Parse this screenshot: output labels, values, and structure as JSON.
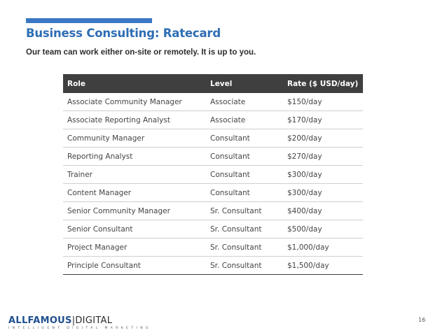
{
  "slide": {
    "title": "Business Consulting: Ratecard",
    "subtitle": "Our team can work either on-site or remotely. It is up to you.",
    "page_number": "16"
  },
  "table": {
    "headers": [
      "Role",
      "Level",
      "Rate ($ USD/day)"
    ],
    "rows": [
      [
        "Associate Community Manager",
        "Associate",
        "$150/day"
      ],
      [
        "Associate Reporting Analyst",
        "Associate",
        "$170/day"
      ],
      [
        "Community Manager",
        "Consultant",
        "$200/day"
      ],
      [
        "Reporting Analyst",
        "Consultant",
        "$270/day"
      ],
      [
        "Trainer",
        "Consultant",
        "$300/day"
      ],
      [
        "Content Manager",
        "Consultant",
        "$300/day"
      ],
      [
        "Senior Community Manager",
        "Sr. Consultant",
        "$400/day"
      ],
      [
        "Senior Consultant",
        "Sr. Consultant",
        "$500/day"
      ],
      [
        "Project Manager",
        "Sr. Consultant",
        "$1,000/day"
      ],
      [
        "Principle Consultant",
        "Sr. Consultant",
        "$1,500/day"
      ]
    ]
  },
  "logo": {
    "brand_part1": "ALLFAMOUS",
    "separator": "|",
    "brand_part2": "DIGITAL",
    "tagline": "INTELLIGENT DIGITAL MARKETING"
  },
  "colors": {
    "accent": "#3a78c4",
    "title": "#2e6db4",
    "header_bg": "#3f3f3f"
  }
}
